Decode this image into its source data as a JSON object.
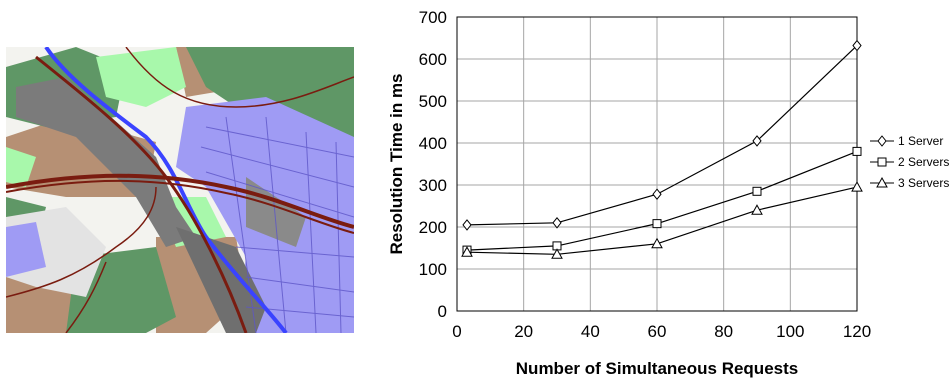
{
  "map_panel": {
    "colors": {
      "background": "#f3f3ef",
      "residential": "#9f9bf4",
      "forest": "#5f9766",
      "meadow": "#a8f8ab",
      "farmland": "#b69074",
      "industrial": "#7b7b7b",
      "water": "#3a43ff",
      "road": "#7a1c10",
      "field_light": "#e3e3e3"
    }
  },
  "chart_data": {
    "type": "line",
    "xlabel": "Number of Simultaneous Requests",
    "ylabel": "Resolution Time in ms",
    "xlim": [
      0,
      120
    ],
    "ylim": [
      0,
      700
    ],
    "xticks": [
      0,
      20,
      40,
      60,
      80,
      100,
      120
    ],
    "yticks": [
      0,
      100,
      200,
      300,
      400,
      500,
      600,
      700
    ],
    "grid": true,
    "legend_position": "right",
    "x": [
      3,
      30,
      60,
      90,
      120
    ],
    "series": [
      {
        "name": "1 Server",
        "marker": "diamond",
        "values": [
          205,
          210,
          278,
          405,
          632
        ]
      },
      {
        "name": "2 Servers",
        "marker": "square",
        "values": [
          145,
          155,
          208,
          285,
          380
        ]
      },
      {
        "name": "3 Servers",
        "marker": "triangle",
        "values": [
          140,
          135,
          160,
          240,
          295
        ]
      }
    ]
  }
}
